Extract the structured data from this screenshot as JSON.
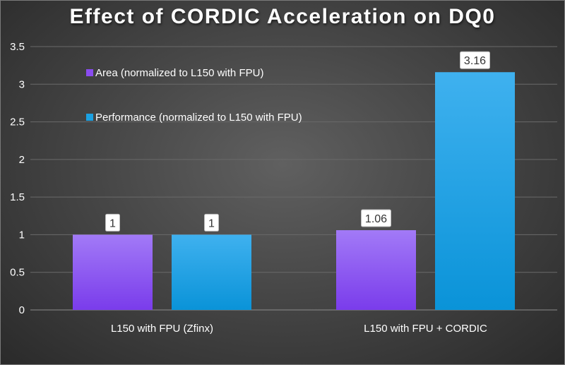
{
  "chart_data": {
    "type": "bar",
    "title": "Effect of CORDIC Acceleration on DQ0",
    "xlabel": "",
    "ylabel": "",
    "categories": [
      "L150 with FPU (Zfinx)",
      "L150 with FPU + CORDIC"
    ],
    "series": [
      {
        "name": "Area (normalized to L150 with FPU)",
        "values": [
          1,
          1.06
        ],
        "labels": [
          "1",
          "1.06"
        ],
        "color": "#8a4cf0"
      },
      {
        "name": "Performance (normalized to L150 with FPU)",
        "values": [
          1,
          3.16
        ],
        "labels": [
          "1",
          "3.16"
        ],
        "color": "#1ba1e2"
      }
    ],
    "ylim": [
      0,
      3.5
    ],
    "yticks": [
      "0",
      "0.5",
      "1",
      "1.5",
      "2",
      "2.5",
      "3",
      "3.5"
    ],
    "grid": true,
    "legend_position": "top-left"
  }
}
